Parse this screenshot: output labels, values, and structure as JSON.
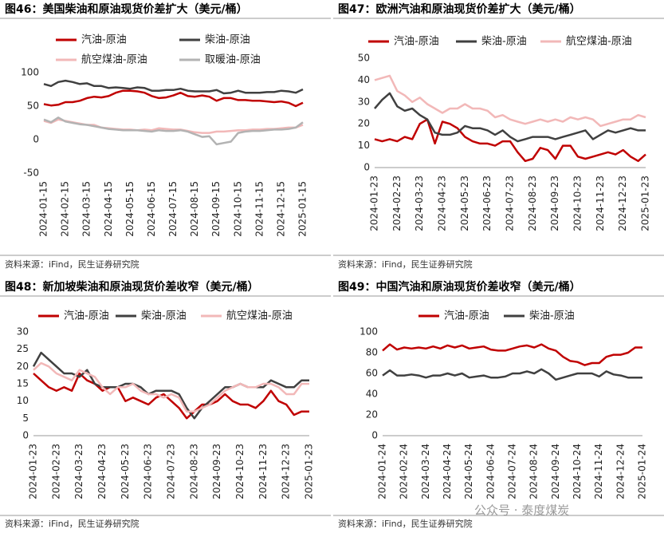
{
  "chart_data": [
    {
      "type": "line",
      "title": "图46：美国柴油和原油现货价差扩大（美元/桶）",
      "source": "资料来源：iFind，民生证券研究院",
      "categories": [
        "2024-01-15",
        null,
        null,
        "2024-02-15",
        null,
        null,
        "2024-03-15",
        null,
        null,
        "2024-04-15",
        null,
        null,
        "2024-05-15",
        null,
        null,
        "2024-06-15",
        null,
        null,
        "2024-07-15",
        null,
        null,
        "2024-08-15",
        null,
        null,
        "2024-09-15",
        null,
        null,
        "2024-10-15",
        null,
        null,
        "2024-11-15",
        null,
        null,
        "2024-12-15",
        null,
        null,
        "2025-01-15"
      ],
      "ylim": [
        -50,
        100
      ],
      "yticks": [
        -50,
        0,
        50,
        100
      ],
      "negative_tick_color": "#c00000",
      "grid": false,
      "series": [
        {
          "name": "汽油-原油",
          "color": "#c00000",
          "values": [
            53,
            51,
            52,
            56,
            56,
            58,
            62,
            64,
            63,
            65,
            70,
            73,
            73,
            72,
            70,
            65,
            62,
            63,
            66,
            70,
            65,
            64,
            66,
            64,
            58,
            62,
            62,
            59,
            59,
            58,
            58,
            57,
            56,
            57,
            55,
            50,
            55
          ]
        },
        {
          "name": "柴油-原油",
          "color": "#404040",
          "values": [
            83,
            80,
            86,
            88,
            86,
            83,
            84,
            80,
            80,
            77,
            78,
            77,
            76,
            78,
            77,
            73,
            73,
            74,
            74,
            76,
            73,
            72,
            72,
            72,
            74,
            69,
            70,
            73,
            70,
            70,
            70,
            71,
            71,
            73,
            72,
            70,
            75
          ]
        },
        {
          "name": "航空煤油-原油",
          "color": "#f2b8b8",
          "values": [
            28,
            25,
            30,
            28,
            26,
            24,
            22,
            22,
            18,
            17,
            16,
            15,
            15,
            14,
            15,
            14,
            17,
            16,
            15,
            15,
            13,
            11,
            10,
            10,
            12,
            12,
            13,
            14,
            14,
            15,
            15,
            16,
            16,
            17,
            18,
            18,
            22
          ]
        },
        {
          "name": "取暖油-原油",
          "color": "#b3b3b3",
          "values": [
            30,
            26,
            33,
            27,
            25,
            23,
            22,
            20,
            18,
            16,
            15,
            14,
            14,
            14,
            13,
            12,
            14,
            13,
            13,
            14,
            12,
            8,
            4,
            5,
            -7,
            -5,
            -3,
            10,
            12,
            13,
            13,
            14,
            15,
            15,
            16,
            18,
            26
          ]
        }
      ]
    },
    {
      "type": "line",
      "title": "图47：欧洲汽油和原油现货价差扩大（美元/桶）",
      "source": "资料来源：iFind，民生证券研究院",
      "categories": [
        "2024-01-23",
        null,
        null,
        "2024-02-23",
        null,
        null,
        "2024-03-23",
        null,
        null,
        "2024-04-23",
        null,
        null,
        "2024-05-23",
        null,
        null,
        "2024-06-23",
        null,
        null,
        "2024-07-23",
        null,
        null,
        "2024-08-23",
        null,
        null,
        "2024-09-23",
        null,
        null,
        "2024-10-23",
        null,
        null,
        "2024-11-23",
        null,
        null,
        "2024-12-23",
        null,
        null,
        "2025-01-23"
      ],
      "ylim": [
        0,
        50
      ],
      "yticks": [
        0,
        10,
        20,
        30,
        40,
        50
      ],
      "grid": false,
      "series": [
        {
          "name": "汽油-原油",
          "color": "#c00000",
          "values": [
            13,
            12,
            13,
            12,
            14,
            13,
            20,
            22,
            11,
            21,
            20,
            18,
            14,
            12,
            11,
            11,
            10,
            12,
            12,
            7,
            3,
            4,
            9,
            8,
            4,
            10,
            10,
            5,
            4,
            5,
            6,
            7,
            6,
            8,
            5,
            3,
            6
          ]
        },
        {
          "name": "柴油-原油",
          "color": "#404040",
          "values": [
            27,
            31,
            34,
            28,
            26,
            27,
            24,
            22,
            16,
            15,
            15,
            16,
            19,
            18,
            18,
            17,
            15,
            17,
            14,
            12,
            13,
            14,
            14,
            14,
            13,
            14,
            15,
            16,
            17,
            13,
            15,
            17,
            16,
            17,
            18,
            17,
            17
          ]
        },
        {
          "name": "航空煤油-原油",
          "color": "#f2b8b8",
          "values": [
            40,
            41,
            42,
            35,
            33,
            30,
            32,
            29,
            27,
            25,
            27,
            27,
            29,
            27,
            27,
            26,
            23,
            24,
            22,
            21,
            20,
            21,
            22,
            21,
            22,
            21,
            23,
            22,
            23,
            22,
            19,
            20,
            21,
            22,
            22,
            24,
            23
          ]
        }
      ]
    },
    {
      "type": "line",
      "title": "图48：新加坡柴油和原油现货价差收窄（美元/桶）",
      "source": "资料来源：iFind，民生证券研究院",
      "categories": [
        "2024-01-23",
        null,
        null,
        "2024-02-23",
        null,
        null,
        "2024-03-23",
        null,
        null,
        "2024-04-23",
        null,
        null,
        "2024-05-23",
        null,
        null,
        "2024-06-23",
        null,
        null,
        "2024-07-23",
        null,
        null,
        "2024-08-23",
        null,
        null,
        "2024-09-23",
        null,
        null,
        "2024-10-23",
        null,
        null,
        "2024-11-23",
        null,
        null,
        "2024-12-23",
        null,
        null,
        "2025-01-23"
      ],
      "ylim": [
        0,
        30
      ],
      "yticks": [
        0,
        5,
        10,
        15,
        20,
        25,
        30
      ],
      "grid": false,
      "series": [
        {
          "name": "汽油-原油",
          "color": "#c00000",
          "values": [
            18,
            16,
            14,
            13,
            14,
            13,
            18,
            16,
            15,
            13,
            14,
            14,
            10,
            11,
            10,
            9,
            11,
            12,
            10,
            8,
            5,
            7,
            9,
            9,
            10,
            12,
            10,
            9,
            9,
            8,
            10,
            13,
            10,
            9,
            6,
            7,
            7
          ]
        },
        {
          "name": "柴油-原油",
          "color": "#404040",
          "values": [
            20,
            24,
            22,
            20,
            18,
            18,
            17,
            19,
            15,
            14,
            14,
            14,
            15,
            15,
            14,
            12,
            13,
            13,
            13,
            12,
            8,
            5,
            8,
            10,
            12,
            14,
            14,
            15,
            14,
            14,
            14,
            16,
            15,
            14,
            14,
            16,
            16
          ]
        },
        {
          "name": "航空煤油-原油",
          "color": "#f2b8b8",
          "values": [
            19,
            21,
            20,
            18,
            17,
            16,
            19,
            18,
            17,
            14,
            12,
            14,
            14,
            15,
            13,
            12,
            12,
            11,
            12,
            11,
            7,
            7,
            8,
            9,
            11,
            13,
            14,
            15,
            14,
            14,
            15,
            15,
            14,
            12,
            12,
            15,
            15
          ]
        }
      ]
    },
    {
      "type": "line",
      "title": "图49：中国汽油和原油现货价差收窄（美元/桶）",
      "source": "资料来源：iFind，民生证券研究院",
      "categories": [
        "2024-01-24",
        null,
        null,
        "2024-02-24",
        null,
        null,
        "2024-03-24",
        null,
        null,
        "2024-04-24",
        null,
        null,
        "2024-05-24",
        null,
        null,
        "2024-06-24",
        null,
        null,
        "2024-07-24",
        null,
        null,
        "2024-08-24",
        null,
        null,
        "2024-09-24",
        null,
        null,
        "2024-10-24",
        null,
        null,
        "2024-11-24",
        null,
        null,
        "2024-12-24",
        null,
        null,
        "2025-01-24"
      ],
      "ylim": [
        0,
        100
      ],
      "yticks": [
        0,
        20,
        40,
        60,
        80,
        100
      ],
      "grid": false,
      "series": [
        {
          "name": "汽油-原油",
          "color": "#c00000",
          "values": [
            82,
            88,
            83,
            85,
            84,
            85,
            84,
            86,
            84,
            87,
            85,
            87,
            84,
            85,
            86,
            83,
            82,
            82,
            84,
            86,
            87,
            85,
            88,
            84,
            82,
            76,
            72,
            71,
            68,
            70,
            70,
            76,
            78,
            78,
            80,
            85,
            85
          ]
        },
        {
          "name": "柴油-原油",
          "color": "#404040",
          "values": [
            58,
            63,
            58,
            58,
            59,
            58,
            56,
            58,
            58,
            60,
            58,
            60,
            56,
            57,
            58,
            56,
            56,
            57,
            60,
            60,
            62,
            60,
            64,
            60,
            54,
            56,
            58,
            60,
            60,
            60,
            57,
            62,
            59,
            58,
            56,
            56,
            56
          ]
        }
      ]
    }
  ],
  "watermark": "公众号 · 泰度煤炭"
}
